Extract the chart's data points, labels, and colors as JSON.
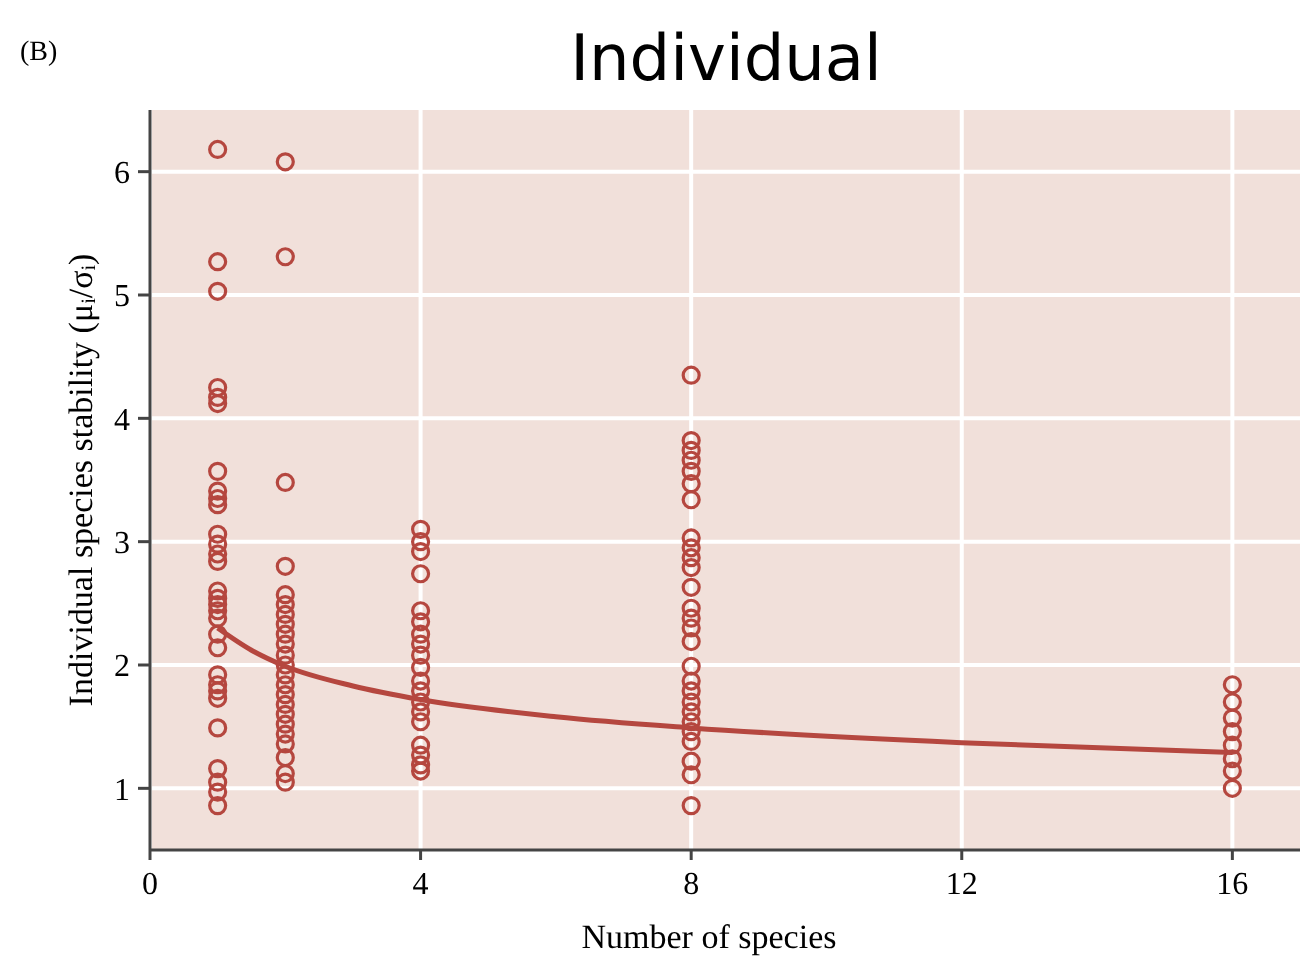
{
  "chart_data": {
    "type": "scatter",
    "title": "Individual",
    "xlabel": "Number of species",
    "ylabel": "Individual species stability (μᵢ/σᵢ)",
    "annotations": [
      "(B)"
    ],
    "xlim": [
      0,
      17
    ],
    "ylim": [
      0.5,
      6.5
    ],
    "xticks": [
      0,
      4,
      8,
      12,
      16
    ],
    "yticks": [
      1,
      2,
      3,
      4,
      5,
      6
    ],
    "grid": true,
    "marker": "circle",
    "series": [
      {
        "color": "#b5473f",
        "x": [
          1,
          1,
          1,
          1,
          1,
          1,
          1,
          1,
          1,
          1,
          1,
          1,
          1,
          1,
          1,
          1,
          1,
          1,
          1,
          1,
          1,
          1,
          1,
          1,
          1,
          1,
          1,
          1,
          1,
          1,
          2,
          2,
          2,
          2,
          2,
          2,
          2,
          2,
          2,
          2,
          2,
          2,
          2,
          2,
          2,
          2,
          2,
          2,
          2,
          2,
          2,
          2,
          2,
          4,
          4,
          4,
          4,
          4,
          4,
          4,
          4,
          4,
          4,
          4,
          4,
          4,
          4,
          4,
          4,
          4,
          4,
          4,
          8,
          8,
          8,
          8,
          8,
          8,
          8,
          8,
          8,
          8,
          8,
          8,
          8,
          8,
          8,
          8,
          8,
          8,
          8,
          8,
          8,
          8,
          8,
          8,
          8,
          8,
          8,
          16,
          16,
          16,
          16,
          16,
          16,
          16,
          16
        ],
        "values": [
          6.18,
          5.27,
          5.03,
          4.25,
          4.17,
          4.12,
          3.57,
          3.41,
          3.35,
          3.3,
          3.06,
          2.98,
          2.9,
          2.84,
          2.6,
          2.54,
          2.49,
          2.44,
          2.38,
          2.25,
          2.14,
          1.92,
          1.84,
          1.79,
          1.73,
          1.49,
          1.16,
          1.05,
          0.97,
          0.86,
          6.08,
          5.31,
          3.48,
          2.8,
          2.57,
          2.49,
          2.41,
          2.33,
          2.25,
          2.17,
          2.08,
          2.0,
          1.92,
          1.84,
          1.76,
          1.68,
          1.6,
          1.52,
          1.44,
          1.36,
          1.25,
          1.12,
          1.05,
          3.1,
          3.0,
          2.92,
          2.74,
          2.44,
          2.35,
          2.25,
          2.17,
          2.08,
          1.98,
          1.87,
          1.79,
          1.7,
          1.62,
          1.54,
          1.35,
          1.27,
          1.19,
          1.14,
          4.35,
          3.82,
          3.74,
          3.66,
          3.57,
          3.47,
          3.34,
          3.03,
          2.95,
          2.87,
          2.79,
          2.63,
          2.46,
          2.38,
          2.3,
          2.19,
          1.99,
          1.87,
          1.79,
          1.7,
          1.62,
          1.54,
          1.46,
          1.38,
          1.22,
          1.11,
          0.86,
          1.84,
          1.7,
          1.57,
          1.46,
          1.35,
          1.24,
          1.14,
          1.0
        ]
      },
      {
        "type": "line",
        "color": "#b5473f",
        "marker": "none",
        "x": [
          1,
          1.5,
          2,
          3,
          4,
          6,
          8,
          12,
          16
        ],
        "values": [
          2.3,
          2.12,
          1.99,
          1.83,
          1.72,
          1.58,
          1.49,
          1.37,
          1.29
        ]
      }
    ]
  }
}
